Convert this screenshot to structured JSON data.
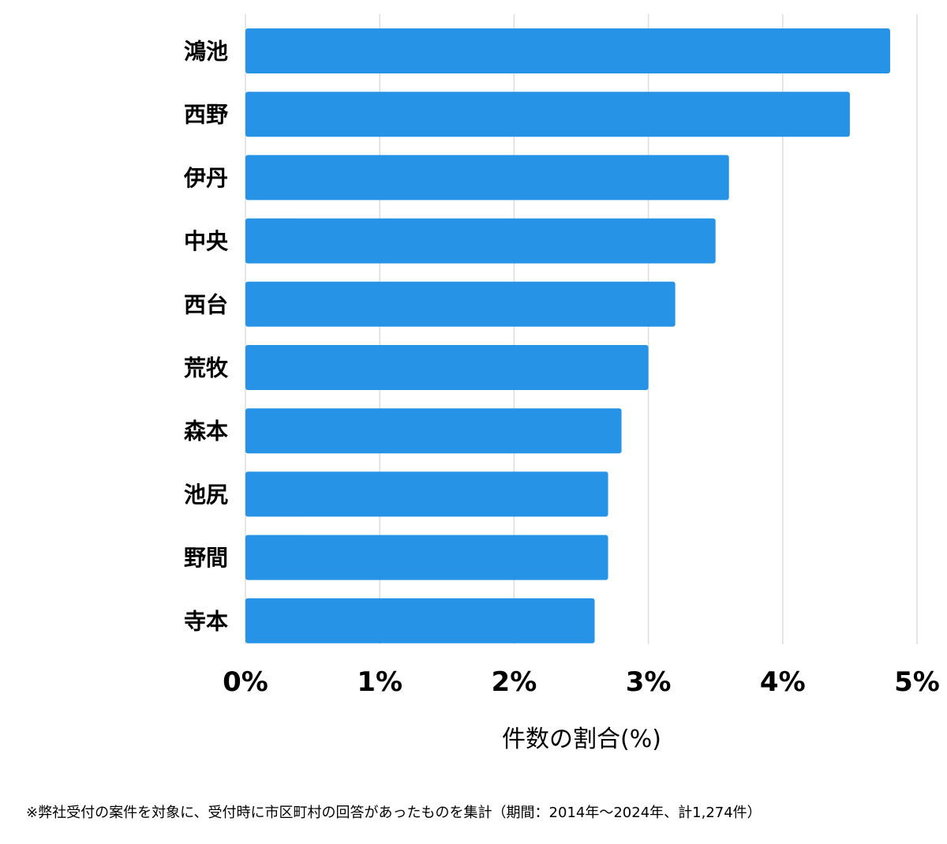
{
  "chart_data": {
    "type": "bar",
    "orientation": "horizontal",
    "categories": [
      "鴻池",
      "西野",
      "伊丹",
      "中央",
      "西台",
      "荒牧",
      "森本",
      "池尻",
      "野間",
      "寺本"
    ],
    "values": [
      4.8,
      4.5,
      3.6,
      3.5,
      3.2,
      3.0,
      2.8,
      2.7,
      2.7,
      2.6
    ],
    "xlim": [
      0,
      5
    ],
    "ticks": [
      0,
      1,
      2,
      3,
      4,
      5
    ],
    "tick_labels": [
      "0%",
      "1%",
      "2%",
      "3%",
      "4%",
      "5%"
    ],
    "xlabel": "件数の割合(%)",
    "ylabel": "",
    "grid": "vertical",
    "bar_color": "#2693e6",
    "grid_color": "#dddddd"
  },
  "footnote": "※弊社受付の案件を対象に、受付時に市区町村の回答があったものを集計（期間：2014年～2024年、計1,274件）"
}
